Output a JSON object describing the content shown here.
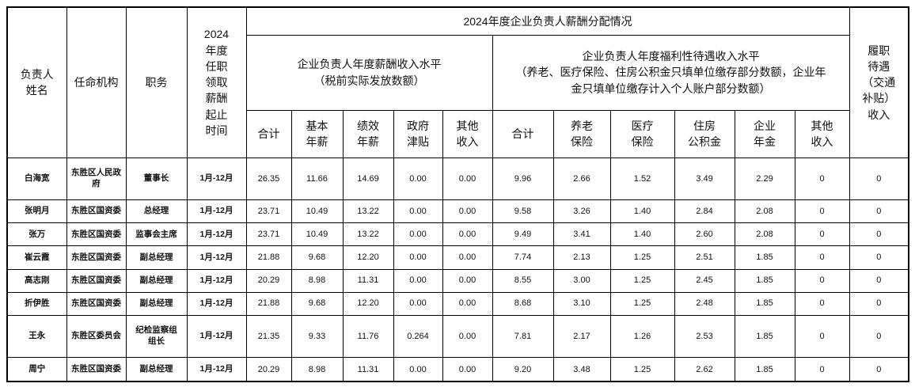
{
  "page": {
    "background_color": "#ffffff",
    "border_color": "#000000",
    "text_color": "#000000"
  },
  "table": {
    "header": {
      "name": "负责人\n姓名",
      "agency": "任命机构",
      "position": "职务",
      "period": "2024\n年度\n任职\n领取\n薪酬\n起止\n时间",
      "main_title": "2024年度企业负责人薪酬分配情况",
      "salary_group": "企业负责人年度薪酬收入水平\n（税前实际发放数额）",
      "welfare_group": "企业负责人年度福利性待遇收入水平\n（养老、医疗保险、住房公积金只填单位缴存部分数额，企业年\n金只填单位缴存计入个人账户部分数额）",
      "duty_allowance": "履职\n待遇\n（交通\n补贴）\n收入",
      "sub_columns": [
        "合计",
        "基本\n年薪",
        "绩效\n年薪",
        "政府\n津贴",
        "其他\n收入",
        "合计",
        "养老\n保险",
        "医疗\n保险",
        "住房\n公积金",
        "企业\n年金",
        "其他\n收入"
      ]
    },
    "rows": [
      [
        "白海宽",
        "东胜区人民政府",
        "董事长",
        "1月-12月",
        "26.35",
        "11.66",
        "14.69",
        "0.00",
        "0.00",
        "9.96",
        "2.66",
        "1.52",
        "3.49",
        "2.29",
        "0",
        "0"
      ],
      [
        "张明月",
        "东胜区国资委",
        "总经理",
        "1月-12月",
        "23.71",
        "10.49",
        "13.22",
        "0.00",
        "0.00",
        "9.58",
        "3.26",
        "1.40",
        "2.84",
        "2.08",
        "0",
        "0"
      ],
      [
        "张万",
        "东胜区国资委",
        "监事会主席",
        "1月-12月",
        "23.71",
        "10.49",
        "13.22",
        "0.00",
        "0.00",
        "9.49",
        "3.41",
        "1.40",
        "2.60",
        "2.08",
        "0",
        "0"
      ],
      [
        "崔云霞",
        "东胜区国资委",
        "副总经理",
        "1月-12月",
        "21.88",
        "9.68",
        "12.20",
        "0.00",
        "0.00",
        "7.74",
        "2.13",
        "1.25",
        "2.51",
        "1.85",
        "0",
        "0"
      ],
      [
        "高志刚",
        "东胜区国资委",
        "副总经理",
        "1月-12月",
        "20.29",
        "8.98",
        "11.31",
        "0.00",
        "0.00",
        "8.55",
        "3.00",
        "1.25",
        "2.45",
        "1.85",
        "0",
        "0"
      ],
      [
        "折伊胜",
        "东胜区国资委",
        "副总经理",
        "1月-12月",
        "21.88",
        "9.68",
        "12.20",
        "0.00",
        "0.00",
        "8.68",
        "3.10",
        "1.25",
        "2.48",
        "1.85",
        "0",
        "0"
      ],
      [
        "王永",
        "东胜区委员会",
        "纪检监察组\n组长",
        "1月-12月",
        "21.35",
        "9.33",
        "11.76",
        "0.264",
        "0.00",
        "7.81",
        "2.17",
        "1.26",
        "2.53",
        "1.85",
        "0",
        "0"
      ],
      [
        "周宁",
        "东胜区国资委",
        "副总经理",
        "1月-12月",
        "20.29",
        "8.98",
        "11.31",
        "0.00",
        "0.00",
        "9.20",
        "3.48",
        "1.25",
        "2.62",
        "1.85",
        "0",
        "0"
      ]
    ]
  }
}
